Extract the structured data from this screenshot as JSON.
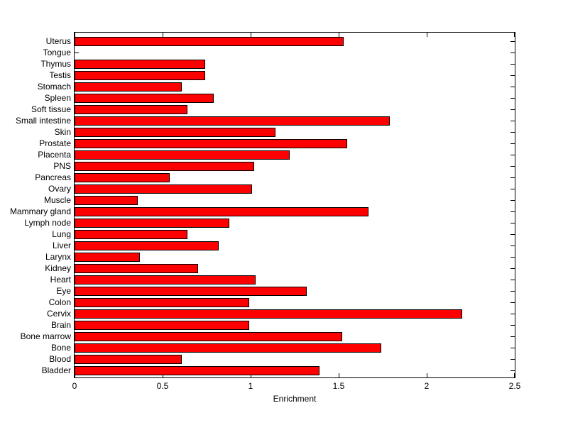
{
  "figure": {
    "background_color": "#ffffff"
  },
  "chart_data": {
    "type": "bar",
    "orientation": "horizontal",
    "title": "",
    "xlabel": "Enrichment",
    "ylabel": "",
    "xlim": [
      0,
      2.5
    ],
    "xtick_labels": [
      "0",
      "0.5",
      "1",
      "1.5",
      "2",
      "2.5"
    ],
    "xtick_values": [
      0,
      0.5,
      1,
      1.5,
      2,
      2.5
    ],
    "grid": false,
    "legend_position": "none",
    "bar_color": "#ff0000",
    "bar_edge_color": "#000000",
    "axis_color": "#000000",
    "categories": [
      "Uterus",
      "Tongue",
      "Thymus",
      "Testis",
      "Stomach",
      "Spleen",
      "Soft tissue",
      "Small intestine",
      "Skin",
      "Prostate",
      "Placenta",
      "PNS",
      "Pancreas",
      "Ovary",
      "Muscle",
      "Mammary gland",
      "Lymph node",
      "Lung",
      "Liver",
      "Larynx",
      "Kidney",
      "Heart",
      "Eye",
      "Colon",
      "Cervix",
      "Brain",
      "Bone marrow",
      "Bone",
      "Blood",
      "Bladder"
    ],
    "values": [
      1.53,
      0,
      0.74,
      0.74,
      0.61,
      0.79,
      0.64,
      1.79,
      1.14,
      1.55,
      1.22,
      1.02,
      0.54,
      1.01,
      0.36,
      1.67,
      0.88,
      0.64,
      0.82,
      0.37,
      0.7,
      1.03,
      1.32,
      0.99,
      2.2,
      0.99,
      1.52,
      1.74,
      0.61,
      1.39
    ]
  }
}
